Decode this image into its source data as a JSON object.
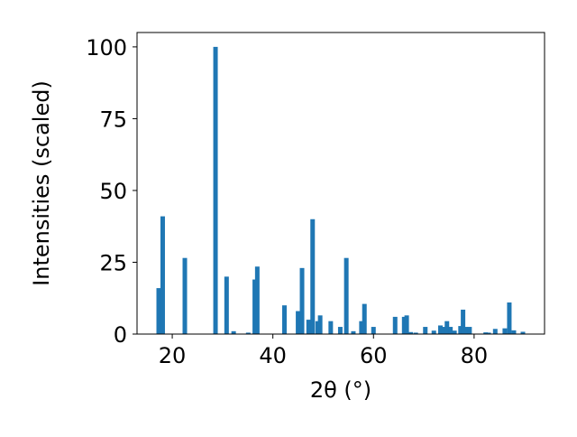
{
  "chart_data": {
    "type": "bar",
    "xlabel": "2θ (°)",
    "ylabel": "Intensities (scaled)",
    "xlim": [
      13,
      94
    ],
    "ylim": [
      0,
      105
    ],
    "grid": false,
    "bar_color": "#1f77b4",
    "x_ticks": [
      {
        "value": 20,
        "label": "20"
      },
      {
        "value": 40,
        "label": "40"
      },
      {
        "value": 60,
        "label": "60"
      },
      {
        "value": 80,
        "label": "80"
      }
    ],
    "y_ticks": [
      {
        "value": 0,
        "label": "0"
      },
      {
        "value": 25,
        "label": "25"
      },
      {
        "value": 50,
        "label": "50"
      },
      {
        "value": 75,
        "label": "75"
      },
      {
        "value": 100,
        "label": "100"
      }
    ],
    "x": [
      17.3,
      18.1,
      22.5,
      28.6,
      30.8,
      32.2,
      35.1,
      36.4,
      36.9,
      42.3,
      45.0,
      45.8,
      47.1,
      47.9,
      48.9,
      49.4,
      51.5,
      53.4,
      54.6,
      56.0,
      57.6,
      58.2,
      60.0,
      64.3,
      66.1,
      66.6,
      67.4,
      68.4,
      70.3,
      72.0,
      73.3,
      74.0,
      74.6,
      75.3,
      76.1,
      77.3,
      77.8,
      78.3,
      79.1,
      82.3,
      82.9,
      84.2,
      86.1,
      87.0,
      87.9,
      89.7
    ],
    "values": [
      16,
      41,
      26.5,
      100,
      20,
      1,
      0.5,
      19,
      23.5,
      10,
      8,
      23,
      5,
      40,
      4.5,
      6.5,
      4.5,
      2.5,
      26.5,
      1,
      4.5,
      10.5,
      2.5,
      6,
      6,
      6.5,
      0.7,
      0.5,
      2.5,
      1.2,
      3,
      2.5,
      4.5,
      2.5,
      1.2,
      2.8,
      8.5,
      2.5,
      2.5,
      0.6,
      0.5,
      1.8,
      2,
      11,
      1.3,
      0.8
    ]
  }
}
